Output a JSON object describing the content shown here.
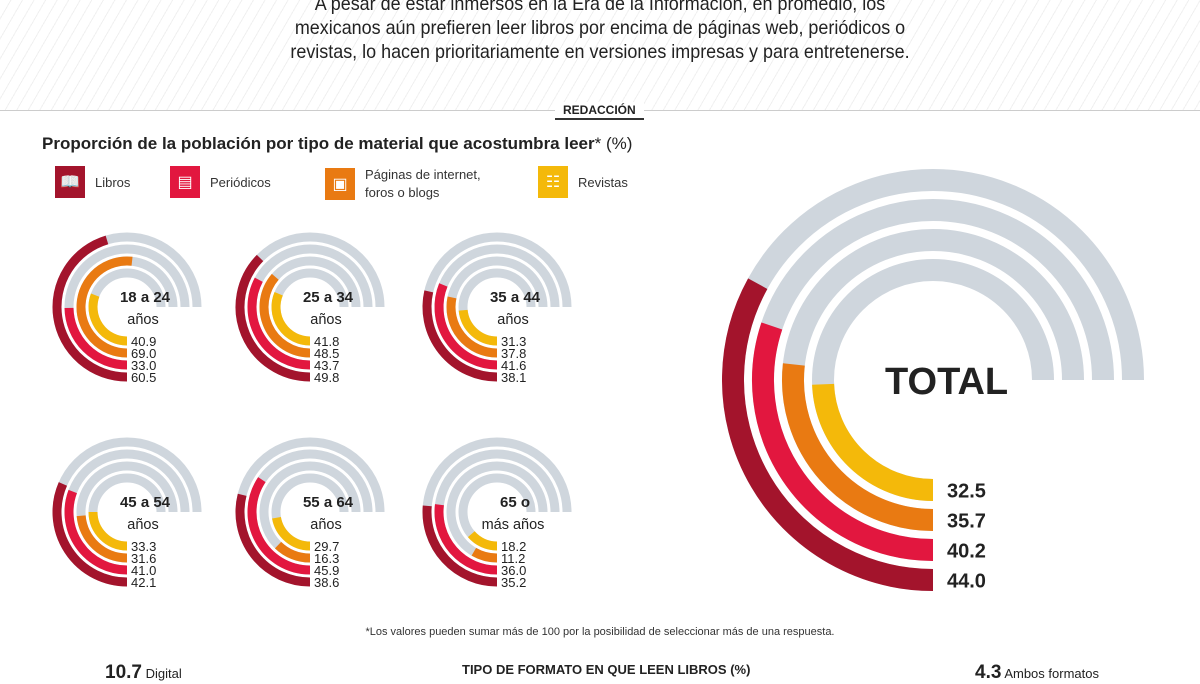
{
  "intro_lines": [
    "A pesar de estar inmersos en la Era de la Información, en promedio, los",
    "mexicanos aún prefieren leer libros por encima de páginas web, periódicos o",
    "revistas, lo hacen prioritariamente en versiones impresas y para entretenerse."
  ],
  "byline": "REDACCIÓN",
  "footnote": "*Los valores pueden sumar más de 100 por la posibilidad de seleccionar más de una respuesta.",
  "bottom": {
    "left_value": "10.7",
    "left_label": "Digital",
    "center_title": "TIPO DE FORMATO EN QUE LEEN LIBROS (%)",
    "right_value": "4.3",
    "right_label": "Ambos formatos"
  },
  "colors": {
    "libros": "#a3142c",
    "periodicos": "#e2173f",
    "paginas": "#e97a12",
    "revistas": "#f4b90a",
    "track": "#cfd6dd"
  },
  "chart_data": {
    "type": "radial-bar",
    "title": "Proporción de la población por tipo de material que acostumbra leer",
    "title_suffix": "* (%)",
    "scale_max": 100,
    "legend": [
      {
        "key": "libros",
        "label": "Libros",
        "icon": "book-icon"
      },
      {
        "key": "periodicos",
        "label": "Periódicos",
        "icon": "newspaper-icon"
      },
      {
        "key": "paginas",
        "label": "Páginas de internet, foros o blogs",
        "label_lines": [
          "Páginas de internet,",
          "foros o blogs"
        ],
        "icon": "laptop-icon"
      },
      {
        "key": "revistas",
        "label": "Revistas",
        "icon": "magazine-icon"
      }
    ],
    "groups": [
      {
        "label_lines": [
          "18 a 24",
          "años"
        ],
        "revistas": "40.9",
        "paginas": "69.0",
        "periodicos": "33.0",
        "libros": "60.5"
      },
      {
        "label_lines": [
          "25 a 34",
          "años"
        ],
        "revistas": "41.8",
        "paginas": "48.5",
        "periodicos": "43.7",
        "libros": "49.8"
      },
      {
        "label_lines": [
          "35 a 44",
          "años"
        ],
        "revistas": "31.3",
        "paginas": "37.8",
        "periodicos": "41.6",
        "libros": "38.1"
      },
      {
        "label_lines": [
          "45 a 54",
          "años"
        ],
        "revistas": "33.3",
        "paginas": "31.6",
        "periodicos": "41.0",
        "libros": "42.1"
      },
      {
        "label_lines": [
          "55 a 64",
          "años"
        ],
        "revistas": "29.7",
        "paginas": "16.3",
        "periodicos": "45.9",
        "libros": "38.6"
      },
      {
        "label_lines": [
          "65 o",
          "más años"
        ],
        "revistas": "18.2",
        "paginas": "11.2",
        "periodicos": "36.0",
        "libros": "35.2"
      },
      {
        "label_lines": [
          "TOTAL"
        ],
        "revistas": "32.5",
        "paginas": "35.7",
        "periodicos": "40.2",
        "libros": "44.0",
        "total": true
      }
    ]
  }
}
